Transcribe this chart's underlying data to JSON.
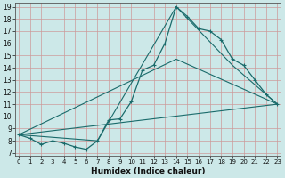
{
  "xlabel": "Humidex (Indice chaleur)",
  "bg_color": "#cce8e8",
  "grid_color": "#aacccc",
  "line_color": "#1a6b6b",
  "line1_x": [
    0,
    1,
    2,
    3,
    4,
    5,
    6,
    7,
    8,
    9,
    10,
    11,
    12,
    13,
    14,
    15,
    16,
    17,
    18,
    19,
    20,
    21,
    22,
    23
  ],
  "line1_y": [
    8.5,
    8.2,
    7.7,
    8.0,
    7.8,
    7.5,
    7.3,
    8.0,
    9.7,
    9.8,
    11.2,
    13.8,
    14.2,
    16.0,
    19.0,
    18.2,
    17.2,
    17.0,
    16.3,
    14.7,
    14.2,
    13.0,
    11.8,
    11.0
  ],
  "line2_x": [
    0,
    7,
    14,
    19,
    23
  ],
  "line2_y": [
    8.5,
    8.0,
    19.0,
    14.2,
    11.0
  ],
  "line3_x": [
    0,
    14,
    23
  ],
  "line3_y": [
    8.5,
    14.7,
    11.0
  ],
  "line4_x": [
    0,
    23
  ],
  "line4_y": [
    8.5,
    11.0
  ],
  "xmin": 0,
  "xmax": 23,
  "ymin": 7,
  "ymax": 19,
  "xticks": [
    0,
    1,
    2,
    3,
    4,
    5,
    6,
    7,
    8,
    9,
    10,
    11,
    12,
    13,
    14,
    15,
    16,
    17,
    18,
    19,
    20,
    21,
    22,
    23
  ],
  "yticks": [
    7,
    8,
    9,
    10,
    11,
    12,
    13,
    14,
    15,
    16,
    17,
    18,
    19
  ]
}
